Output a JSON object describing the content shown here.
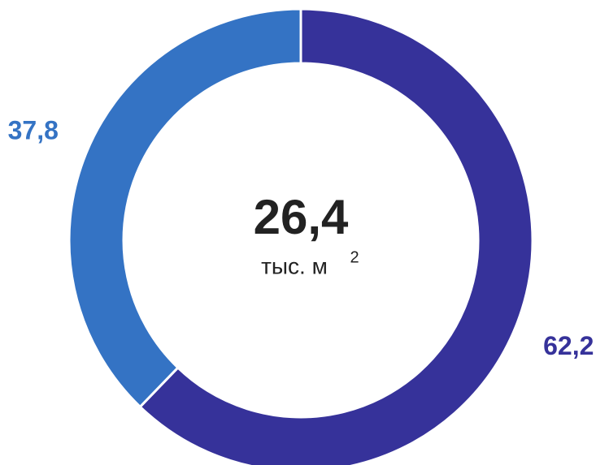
{
  "chart_data": {
    "type": "donut",
    "values": [
      62.2,
      37.8
    ],
    "value_labels": [
      "62,2",
      "37,8"
    ],
    "colors": [
      "#36329a",
      "#3473c4"
    ],
    "center_label": "26,4",
    "center_unit": "тыс. м",
    "center_unit_sup": "2"
  }
}
